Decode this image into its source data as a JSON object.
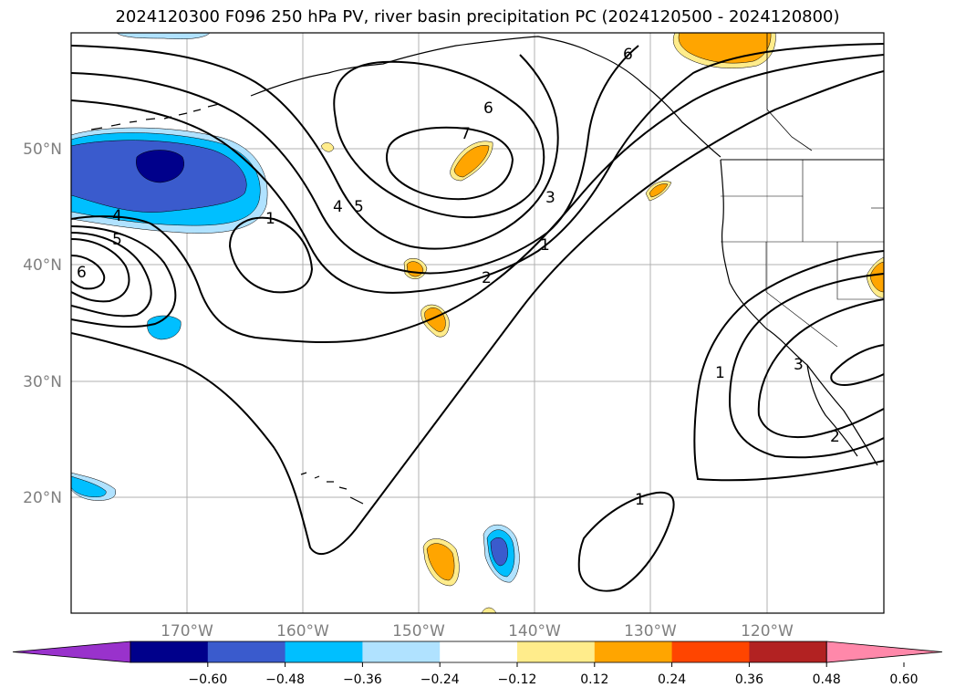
{
  "title": "2024120300 F096 250 hPa PV, river basin precipitation PC (2024120500 - 2024120800)",
  "map": {
    "lat_labels": [
      "50°N",
      "40°N",
      "30°N",
      "20°N"
    ],
    "lon_labels": [
      "170°W",
      "160°W",
      "150°W",
      "140°W",
      "130°W",
      "120°W"
    ],
    "grid": true
  },
  "contour_labels": [
    {
      "text": "6",
      "name": "pv-label-6-ne"
    },
    {
      "text": "6",
      "name": "pv-label-6-center"
    },
    {
      "text": "7",
      "name": "pv-label-7"
    },
    {
      "text": "4",
      "name": "pv-label-4-center"
    },
    {
      "text": "5",
      "name": "pv-label-5-center"
    },
    {
      "text": "1",
      "name": "pv-label-1-west"
    },
    {
      "text": "4",
      "name": "pv-label-4-west"
    },
    {
      "text": "5",
      "name": "pv-label-5-west"
    },
    {
      "text": "6",
      "name": "pv-label-6-west"
    },
    {
      "text": "3",
      "name": "pv-label-3-trough"
    },
    {
      "text": "1",
      "name": "pv-label-1-trough"
    },
    {
      "text": "2",
      "name": "pv-label-2-trough"
    },
    {
      "text": "1",
      "name": "pv-label-1-east"
    },
    {
      "text": "3",
      "name": "pv-label-3-east"
    },
    {
      "text": "2",
      "name": "pv-label-2-east"
    },
    {
      "text": "1",
      "name": "pv-label-1-south"
    }
  ],
  "colorbar": {
    "ticks": [
      "−0.60",
      "−0.48",
      "−0.36",
      "−0.24",
      "−0.12",
      "0.12",
      "0.24",
      "0.36",
      "0.48",
      "0.60"
    ],
    "colors": [
      "#9932cc",
      "#00008b",
      "#3a5bcd",
      "#00bfff",
      "#b0e2ff",
      "#ffffff",
      "#ffec8b",
      "#ffa500",
      "#ff4500",
      "#b22222",
      "#ff88aa"
    ]
  }
}
